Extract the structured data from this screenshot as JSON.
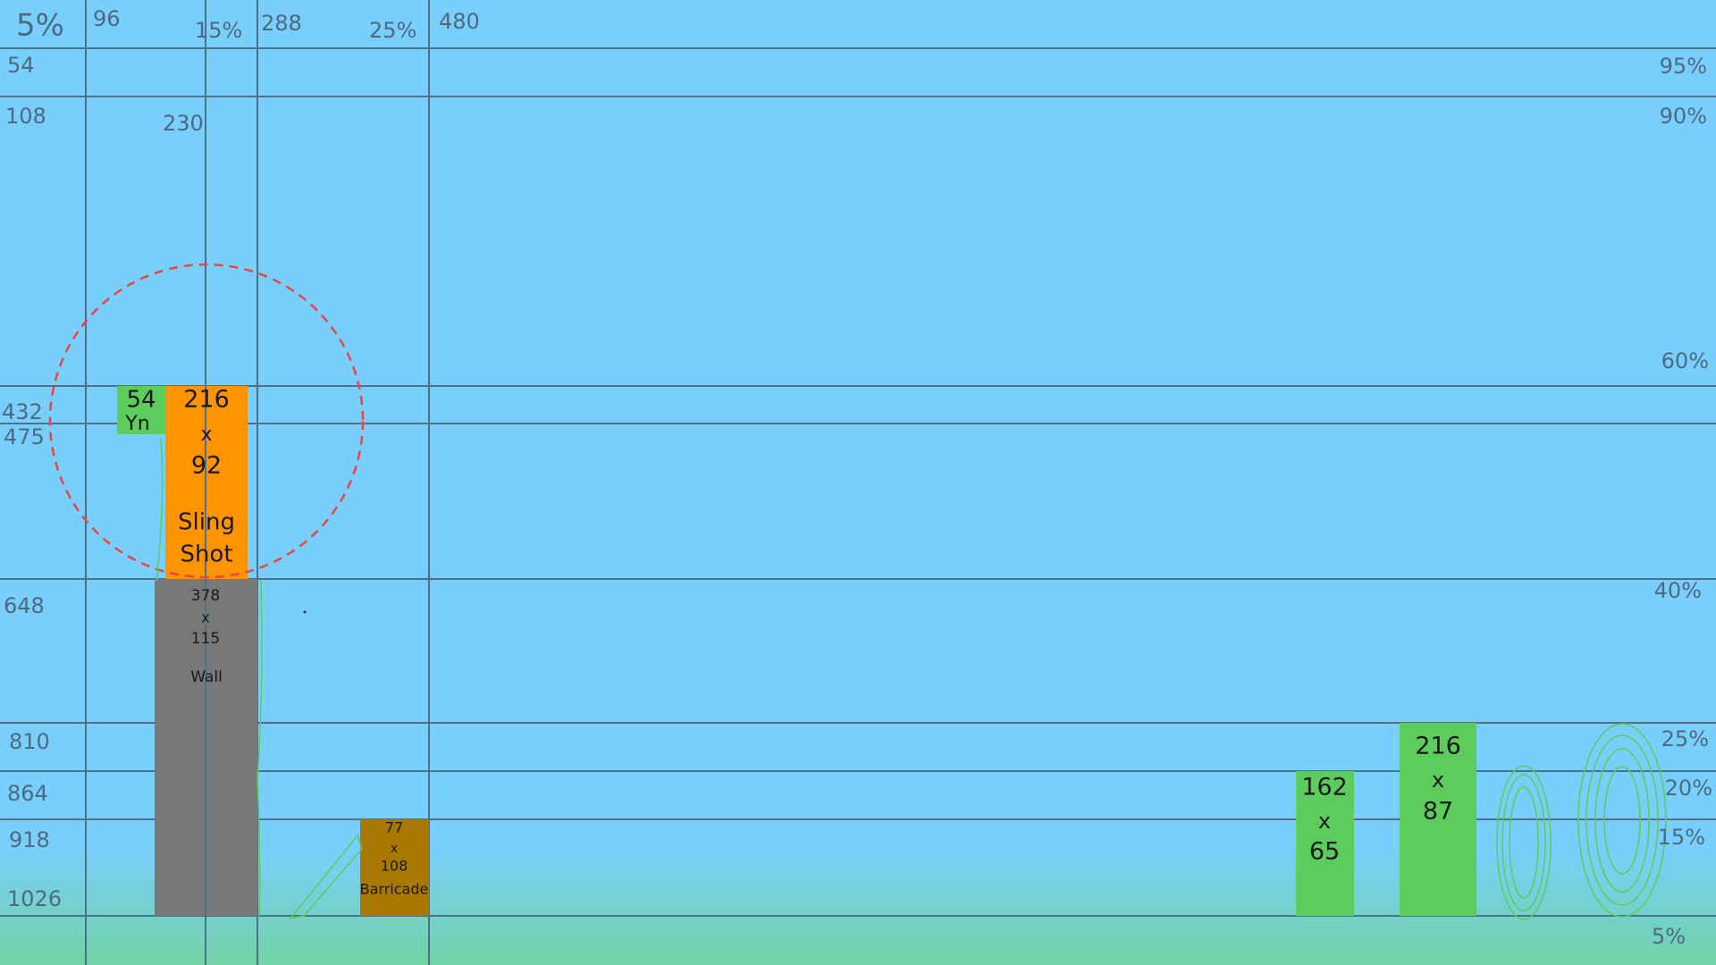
{
  "top_labels": [
    "5%",
    "96",
    "15%",
    "288",
    "25%",
    "480"
  ],
  "left_labels": [
    "54",
    "108",
    "230",
    "432",
    "475",
    "648",
    "810",
    "864",
    "918",
    "1026"
  ],
  "right_labels": [
    "95%",
    "90%",
    "60%",
    "40%",
    "25%",
    "20%",
    "15%",
    "5%"
  ],
  "boxes": {
    "ninja": {
      "lines": [
        "54",
        "Yn"
      ]
    },
    "slingshot": {
      "lines": [
        "216",
        "x",
        "92",
        "Sling",
        "Shot"
      ]
    },
    "wall": {
      "lines": [
        "378",
        "x",
        "115",
        "Wall"
      ]
    },
    "barricade": {
      "lines": [
        "77",
        "x",
        "108",
        "Barricade"
      ]
    },
    "bush_small": {
      "lines": [
        "162",
        "x",
        "65"
      ]
    },
    "bush_large": {
      "lines": [
        "216",
        "x",
        "87"
      ]
    }
  }
}
